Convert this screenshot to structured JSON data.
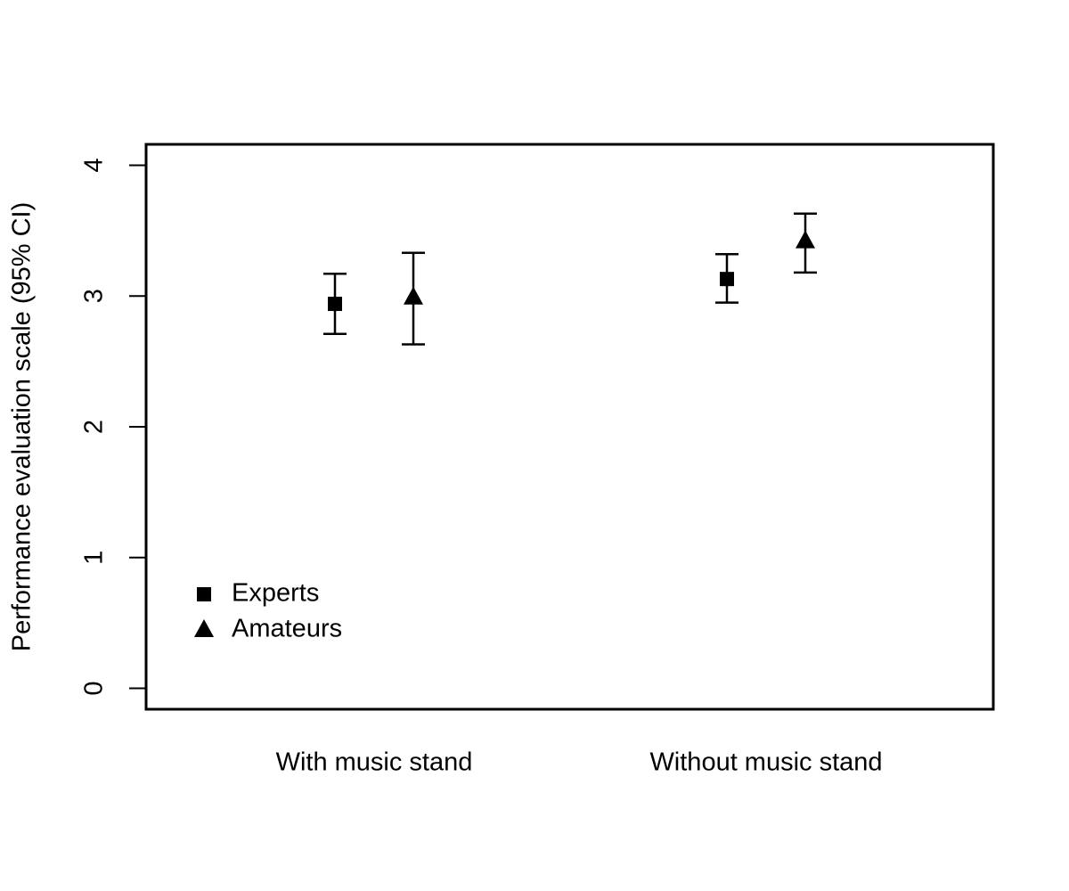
{
  "chart_data": {
    "type": "errorbar",
    "y_label": "Performance evaluation scale (95% CI)",
    "categories": [
      "With music stand",
      "Without music stand"
    ],
    "series": [
      {
        "name": "Experts",
        "color": "#000000",
        "marker": "square",
        "values": [
          2.94,
          3.13
        ],
        "lower": [
          2.71,
          2.95
        ],
        "upper": [
          3.17,
          3.32
        ]
      },
      {
        "name": "Amateurs",
        "color": "#000000",
        "marker": "triangle",
        "values": [
          2.99,
          3.42
        ],
        "lower": [
          2.63,
          3.18
        ],
        "upper": [
          3.33,
          3.63
        ]
      }
    ],
    "ylim": [
      -0.16,
      4.16
    ],
    "yticks": [
      0,
      1,
      2,
      3,
      4
    ],
    "legend": "bottom-left"
  }
}
